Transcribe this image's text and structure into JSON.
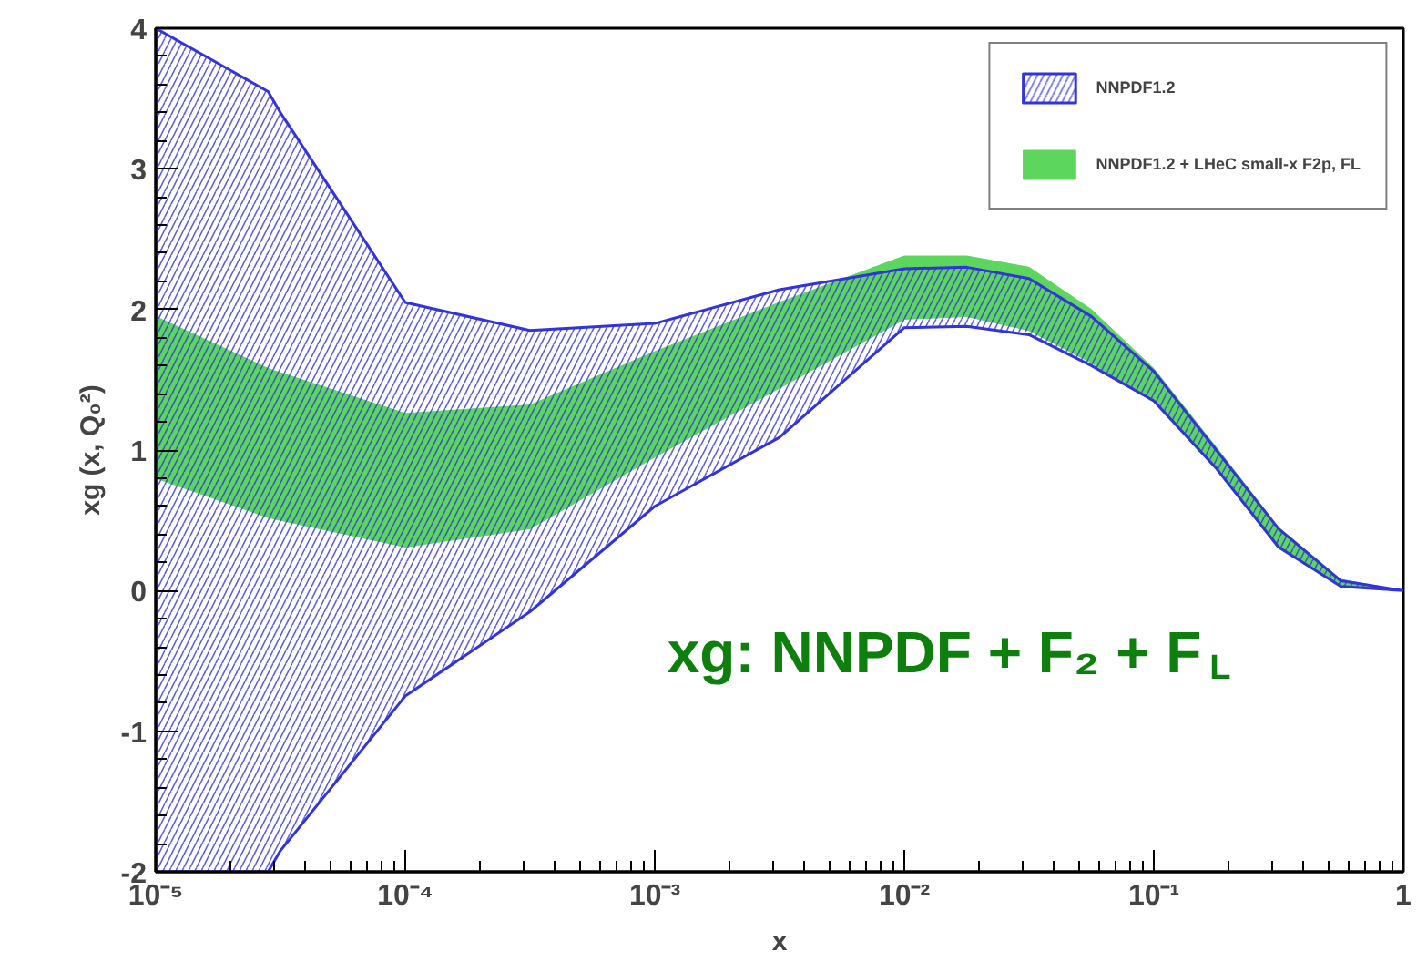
{
  "chart_data": {
    "type": "area",
    "xlabel": "x",
    "ylabel": "xg (x, Q₀²)",
    "annotations": [
      "xg: NNPDF + F₂ + F$_{L}$"
    ],
    "log": "x",
    "grid": false,
    "legend": "top right",
    "xlim": [
      1e-05,
      1
    ],
    "ylim": [
      -2,
      4
    ],
    "xticks": [
      {
        "value": 1e-05,
        "label": "10⁻⁵"
      },
      {
        "value": 0.0001,
        "label": "10⁻⁴"
      },
      {
        "value": 0.001,
        "label": "10⁻³"
      },
      {
        "value": 0.01,
        "label": "10⁻²"
      },
      {
        "value": 0.1,
        "label": "10⁻¹"
      },
      1
    ],
    "yticks": [
      -2,
      -1,
      0,
      1,
      2,
      3,
      4
    ],
    "series": [
      {
        "name": "NNPDF1.2",
        "color": "#3333dd",
        "x": [
          1e-05,
          2.82e-05,
          3.16e-05,
          0.0001,
          0.000316,
          0.001,
          0.00316,
          0.01,
          0.0178,
          0.0316,
          0.0562,
          0.1,
          0.178,
          0.316,
          0.562,
          1
        ],
        "values": [
          null,
          null,
          null,
          null,
          null,
          null,
          null,
          null,
          null,
          null,
          null,
          null,
          null,
          null,
          null,
          null
        ],
        "upper": [
          4,
          3.55,
          3.4,
          2.05,
          1.85,
          1.9,
          2.14,
          2.29,
          2.3,
          2.22,
          1.95,
          1.56,
          1.0,
          0.44,
          0.07,
          0
        ],
        "lower": [
          -2,
          -2,
          -1.85,
          -0.75,
          -0.15,
          0.6,
          1.09,
          1.87,
          1.88,
          1.82,
          1.6,
          1.35,
          0.87,
          0.31,
          0.03,
          0
        ]
      },
      {
        "name": "NNPDF1.2 + LHeC small-x F2p, FL",
        "color": "#5cd65c",
        "x": [
          1e-05,
          2.82e-05,
          3.16e-05,
          0.0001,
          0.000316,
          0.001,
          0.00316,
          0.01,
          0.0178,
          0.0316,
          0.0562,
          0.1,
          0.178,
          0.316,
          0.562,
          1
        ],
        "values": [
          null,
          null,
          null,
          null,
          null,
          null,
          null,
          null,
          null,
          null,
          null,
          null,
          null,
          null,
          null,
          null
        ],
        "upper": [
          1.95,
          1.58,
          1.55,
          1.26,
          1.32,
          1.7,
          2.05,
          2.38,
          2.38,
          2.3,
          2.0,
          1.58,
          1.02,
          0.45,
          0.08,
          0
        ],
        "lower": [
          0.8,
          0.52,
          0.5,
          0.31,
          0.44,
          0.95,
          1.44,
          1.93,
          1.95,
          1.85,
          1.62,
          1.34,
          0.86,
          0.3,
          0.03,
          0
        ]
      }
    ]
  }
}
